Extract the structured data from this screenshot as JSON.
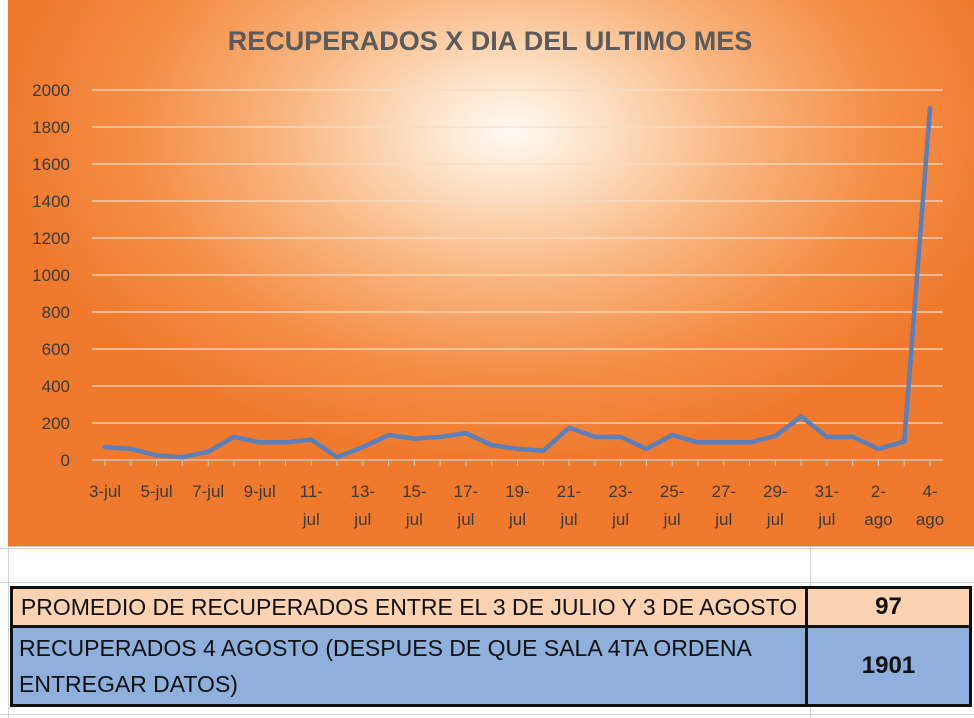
{
  "chart_data": {
    "type": "line",
    "title": "RECUPERADOS X DIA DEL ULTIMO MES",
    "xlabel": "",
    "ylabel": "",
    "ylim": [
      0,
      2000
    ],
    "yticks": [
      0,
      200,
      400,
      600,
      800,
      1000,
      1200,
      1400,
      1600,
      1800,
      2000
    ],
    "grid": true,
    "legend": "none",
    "line_color": "#5b80b9",
    "x_tick_labels": [
      [
        "3-jul"
      ],
      [
        "5-jul"
      ],
      [
        "7-jul"
      ],
      [
        "9-jul"
      ],
      [
        "11-",
        "jul"
      ],
      [
        "13-",
        "jul"
      ],
      [
        "15-",
        "jul"
      ],
      [
        "17-",
        "jul"
      ],
      [
        "19-",
        "jul"
      ],
      [
        "21-",
        "jul"
      ],
      [
        "23-",
        "jul"
      ],
      [
        "25-",
        "jul"
      ],
      [
        "27-",
        "jul"
      ],
      [
        "29-",
        "jul"
      ],
      [
        "31-",
        "jul"
      ],
      [
        "2-",
        "ago"
      ],
      [
        "4-",
        "ago"
      ]
    ],
    "x": [
      "3-jul",
      "4-jul",
      "5-jul",
      "6-jul",
      "7-jul",
      "8-jul",
      "9-jul",
      "10-jul",
      "11-jul",
      "12-jul",
      "13-jul",
      "14-jul",
      "15-jul",
      "16-jul",
      "17-jul",
      "18-jul",
      "19-jul",
      "20-jul",
      "21-jul",
      "22-jul",
      "23-jul",
      "24-jul",
      "25-jul",
      "26-jul",
      "27-jul",
      "28-jul",
      "29-jul",
      "30-jul",
      "31-jul",
      "1-ago",
      "2-ago",
      "3-ago",
      "4-ago"
    ],
    "series": [
      {
        "values": [
          70,
          60,
          25,
          15,
          45,
          125,
          95,
          95,
          110,
          15,
          70,
          135,
          115,
          125,
          145,
          80,
          60,
          50,
          175,
          125,
          125,
          60,
          135,
          95,
          95,
          95,
          130,
          235,
          125,
          125,
          60,
          100,
          1901
        ]
      }
    ]
  },
  "table": {
    "rows": [
      {
        "label": "PROMEDIO DE RECUPERADOS ENTRE EL 3 DE JULIO Y 3 DE AGOSTO",
        "value": "97"
      },
      {
        "label_line1": "RECUPERADOS 4 AGOSTO (DESPUES DE QUE SALA 4TA ORDENA",
        "label_line2": "ENTREGAR DATOS)",
        "value": "1901"
      }
    ]
  }
}
